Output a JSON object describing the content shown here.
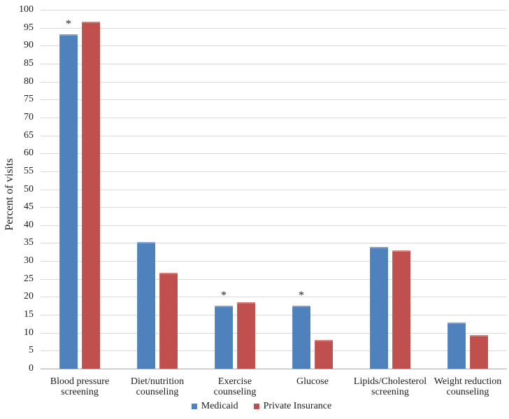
{
  "chart_data": {
    "type": "bar",
    "title": "",
    "xlabel": "",
    "ylabel": "Percent of visits",
    "ylim": [
      0,
      100
    ],
    "ytick_step": 5,
    "grid": true,
    "legend_position": "bottom",
    "annotation_symbol": "*",
    "categories": [
      "Blood pressure screening",
      "Diet/nutrition counseling",
      "Exercise counseling",
      "Glucose",
      "Lipids/Cholesterol screening",
      "Weight reduction counseling"
    ],
    "category_lines": [
      [
        "Blood pressure",
        "screening"
      ],
      [
        "Diet/nutrition",
        "counseling"
      ],
      [
        "Exercise",
        "counseling"
      ],
      [
        "Glucose"
      ],
      [
        "Lipids/Cholesterol",
        "screening"
      ],
      [
        "Weight reduction",
        "counseling"
      ]
    ],
    "series": [
      {
        "name": "Medicaid",
        "color": "#4F81BD",
        "values": [
          93.2,
          35.3,
          17.6,
          17.6,
          34.0,
          12.8
        ]
      },
      {
        "name": "Private Insurance",
        "color": "#C0504D",
        "values": [
          96.7,
          26.7,
          18.6,
          8.0,
          33.0,
          9.3
        ]
      }
    ],
    "significance_on_medicaid_bar": [
      true,
      false,
      true,
      true,
      false,
      false
    ]
  },
  "colors": {
    "medicaid": "#4F81BD",
    "private_insurance": "#C0504D",
    "gridline": "#d9d9d9",
    "axis": "#a6a6a6"
  }
}
